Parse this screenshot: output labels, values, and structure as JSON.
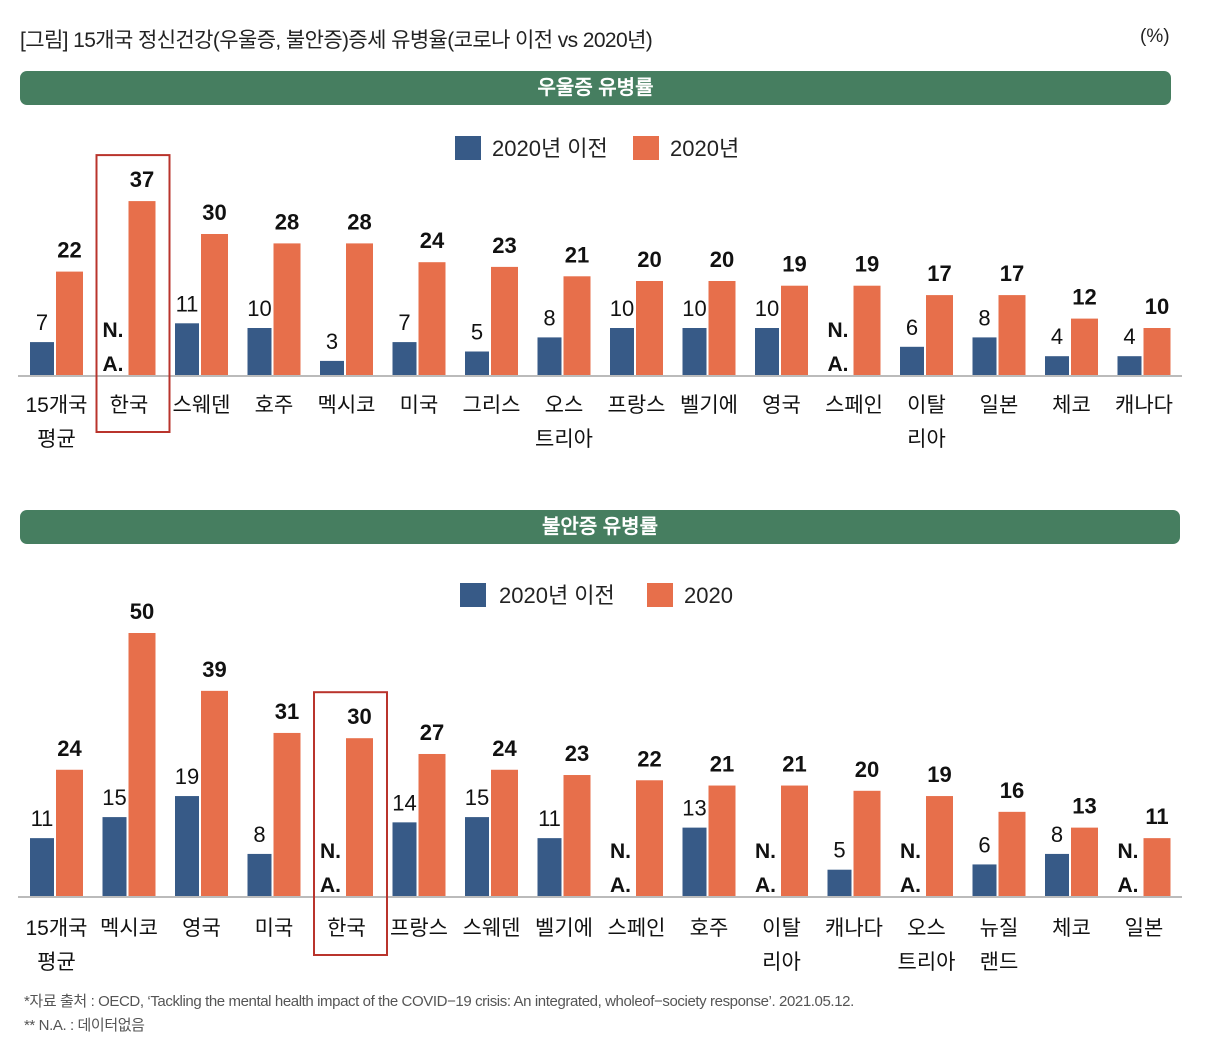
{
  "title": "[그림] 15개국 정신건강(우울증, 불안증)증세 유병율(코로나 이전 vs 2020년)",
  "unit": "(%)",
  "colors": {
    "banner": "#467e60",
    "before": "#375a87",
    "after": "#e76f4b",
    "highlight": "#b9342c",
    "axis": "#bbbbbb"
  },
  "na_label": [
    "N.",
    "A."
  ],
  "footnotes": [
    "*자료 출처 : OECD, ‘Tackling the mental health impact of the COVID−19 crisis: An integrated, wholeof−society response’. 2021.05.12.",
    "** N.A. : 데이터없음"
  ],
  "chart_data": [
    {
      "type": "bar",
      "title": "우울증 유병률",
      "legend": [
        "2020년 이전",
        "2020년"
      ],
      "legend_position": "top-center",
      "highlight_category": "한국",
      "categories": [
        [
          "15개국",
          "평균"
        ],
        [
          "한국"
        ],
        [
          "스웨덴"
        ],
        [
          "호주"
        ],
        [
          "멕시코"
        ],
        [
          "미국"
        ],
        [
          "그리스"
        ],
        [
          "오스",
          "트리아"
        ],
        [
          "프랑스"
        ],
        [
          "벨기에"
        ],
        [
          "영국"
        ],
        [
          "스페인"
        ],
        [
          "이탈",
          "리아"
        ],
        [
          "일본"
        ],
        [
          "체코"
        ],
        [
          "캐나다"
        ]
      ],
      "series": [
        {
          "name": "2020년 이전",
          "values": [
            7,
            null,
            11,
            10,
            3,
            7,
            5,
            8,
            10,
            10,
            10,
            null,
            6,
            8,
            4,
            4
          ]
        },
        {
          "name": "2020년",
          "values": [
            22,
            37,
            30,
            28,
            28,
            24,
            23,
            21,
            20,
            20,
            19,
            19,
            17,
            17,
            12,
            10
          ]
        }
      ],
      "ylabel": "%",
      "ylim": [
        0,
        40
      ],
      "grid": false
    },
    {
      "type": "bar",
      "title": "불안증 유병률",
      "legend": [
        "2020년 이전",
        "2020"
      ],
      "legend_position": "top-center",
      "highlight_category": "한국",
      "categories": [
        [
          "15개국",
          "평균"
        ],
        [
          "멕시코"
        ],
        [
          "영국"
        ],
        [
          "미국"
        ],
        [
          "한국"
        ],
        [
          "프랑스"
        ],
        [
          "스웨덴"
        ],
        [
          "벨기에"
        ],
        [
          "스페인"
        ],
        [
          "호주"
        ],
        [
          "이탈",
          "리아"
        ],
        [
          "캐나다"
        ],
        [
          "오스",
          "트리아"
        ],
        [
          "뉴질",
          "랜드"
        ],
        [
          "체코"
        ],
        [
          "일본"
        ]
      ],
      "series": [
        {
          "name": "2020년 이전",
          "values": [
            11,
            15,
            19,
            8,
            null,
            14,
            15,
            11,
            null,
            13,
            null,
            5,
            null,
            6,
            8,
            null
          ]
        },
        {
          "name": "2020",
          "values": [
            24,
            50,
            39,
            31,
            30,
            27,
            24,
            23,
            22,
            21,
            21,
            20,
            19,
            16,
            13,
            11
          ]
        }
      ],
      "ylabel": "%",
      "ylim": [
        0,
        50
      ],
      "grid": false
    }
  ]
}
